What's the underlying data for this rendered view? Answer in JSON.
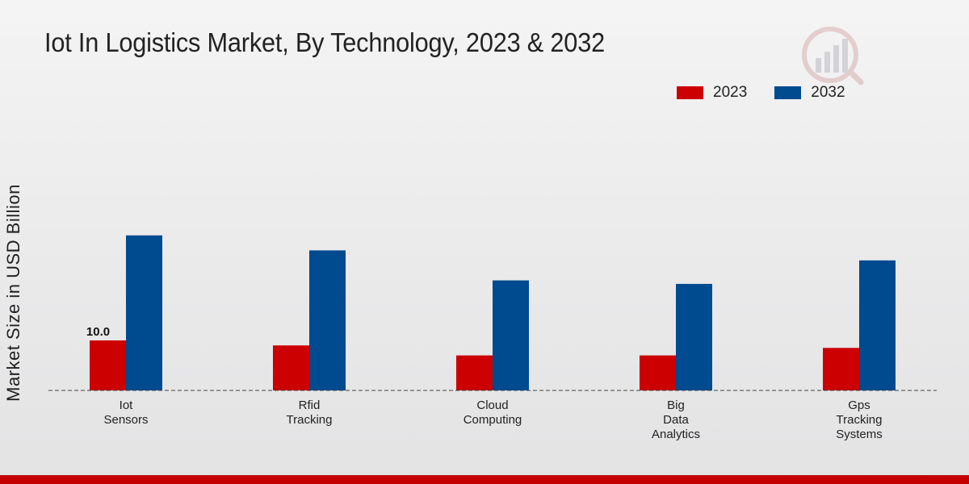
{
  "chart_data": {
    "type": "bar",
    "title": "Iot In Logistics Market, By Technology, 2023 & 2032",
    "xlabel": "",
    "ylabel": "Market Size in USD Billion",
    "ylim": [
      0,
      50
    ],
    "categories": [
      [
        "Iot",
        "Sensors"
      ],
      [
        "Rfid",
        "Tracking"
      ],
      [
        "Cloud",
        "Computing"
      ],
      [
        "Big",
        "Data",
        "Analytics"
      ],
      [
        "Gps",
        "Tracking",
        "Systems"
      ]
    ],
    "series": [
      {
        "name": "2023",
        "color": "#cc0000",
        "values": [
          10.0,
          9.0,
          7.0,
          7.0,
          8.5
        ]
      },
      {
        "name": "2032",
        "color": "#004a8f",
        "values": [
          31.0,
          28.0,
          22.0,
          21.3,
          26.0
        ]
      }
    ],
    "data_labels": [
      {
        "series": 0,
        "index": 0,
        "text": "10.0"
      }
    ],
    "legend": "top-right",
    "grid": false
  },
  "colors": {
    "bottom_bar": "#c40000",
    "baseline": "#444444"
  }
}
